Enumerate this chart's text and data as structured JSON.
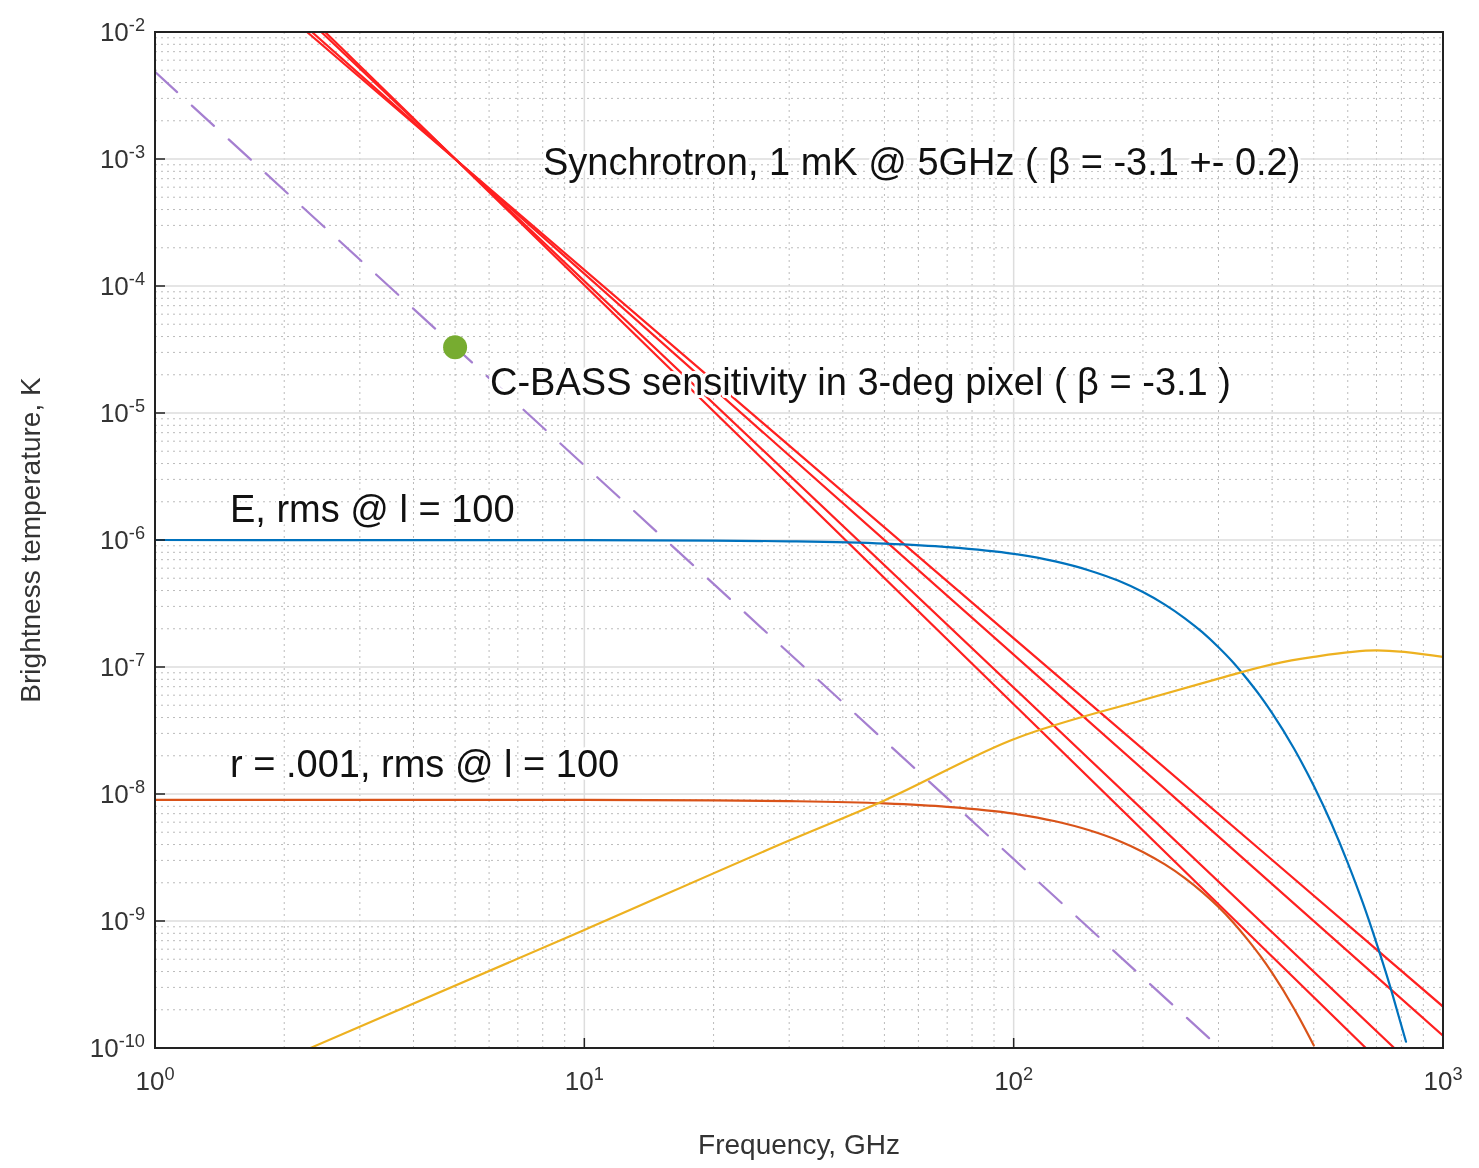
{
  "chart_data": {
    "type": "line",
    "xlabel": "Frequency, GHz",
    "ylabel": "Brightness temperature, K",
    "log": "xy",
    "grid": true,
    "xlim": [
      1,
      1000
    ],
    "ylim": [
      1e-10,
      0.01
    ],
    "xticks": [
      {
        "value": 1,
        "label": "10$^{0}$"
      },
      {
        "value": 10,
        "label": "10$^{1}$"
      },
      {
        "value": 100,
        "label": "10$^{2}$"
      },
      {
        "value": 1000,
        "label": "10$^{3}$"
      }
    ],
    "yticks": [
      {
        "value": 1e-10,
        "label": "10$^{-10}$"
      },
      {
        "value": 1e-09,
        "label": "10$^{-9}$"
      },
      {
        "value": 1e-08,
        "label": "10$^{-8}$"
      },
      {
        "value": 1e-07,
        "label": "10$^{-7}$"
      },
      {
        "value": 1e-06,
        "label": "10$^{-6}$"
      },
      {
        "value": 1e-05,
        "label": "10$^{-5}$"
      },
      {
        "value": 0.0001,
        "label": "10$^{-4}$"
      },
      {
        "value": 0.001,
        "label": "10$^{-3}$"
      },
      {
        "value": 0.01,
        "label": "10$^{-2}$"
      }
    ],
    "series": [
      {
        "color": "#ff2020",
        "line_style": "solid",
        "x": [
          2.49,
          661
        ],
        "values": [
          0.01,
          1e-10
        ]
      },
      {
        "color": "#ff2020",
        "line_style": "solid",
        "x": [
          2.44,
          770
        ],
        "values": [
          0.01,
          1e-10
        ]
      },
      {
        "color": "#ff2020",
        "line_style": "solid",
        "x": [
          2.32,
          1000
        ],
        "values": [
          0.01,
          1.25e-10
        ]
      },
      {
        "color": "#ff2020",
        "line_style": "solid",
        "x": [
          2.26,
          1000
        ],
        "values": [
          0.01,
          2.12e-10
        ]
      },
      {
        "color": "#a57fd0",
        "line_style": "dashed",
        "x": [
          1,
          302
        ],
        "values": [
          0.00486,
          1e-10
        ]
      },
      {
        "color": "#0072bd",
        "line_style": "solid",
        "x": [
          1,
          10,
          20,
          30,
          50,
          70,
          100,
          125,
          150,
          175,
          200,
          225,
          250,
          275,
          300,
          325,
          350,
          375,
          400,
          450,
          500,
          550,
          600,
          650,
          700,
          750,
          800,
          820
        ],
        "values": [
          1e-06,
          9.97e-07,
          9.9e-07,
          9.77e-07,
          9.37e-07,
          8.8e-07,
          7.78e-07,
          6.78e-07,
          5.76e-07,
          4.79e-07,
          3.89e-07,
          3.1e-07,
          2.43e-07,
          1.88e-07,
          1.43e-07,
          1.08e-07,
          8e-08,
          5.92e-08,
          4.33e-08,
          2.27e-08,
          1.16e-08,
          5.83e-09,
          2.87e-09,
          1.4e-09,
          6.7e-10,
          3.2e-10,
          1.5e-10,
          1.12e-10
        ]
      },
      {
        "color": "#d95319",
        "line_style": "solid",
        "x": [
          1,
          10,
          20,
          30,
          50,
          70,
          100,
          125,
          150,
          175,
          200,
          225,
          250,
          275,
          300,
          325,
          350,
          375,
          400,
          450,
          500
        ],
        "values": [
          9e-09,
          8.98e-09,
          8.91e-09,
          8.79e-09,
          8.43e-09,
          7.92e-09,
          7e-09,
          6.1e-09,
          5.18e-09,
          4.31e-09,
          3.5e-09,
          2.79e-09,
          2.19e-09,
          1.69e-09,
          1.29e-09,
          9.7e-10,
          7.2e-10,
          5.33e-10,
          3.9e-10,
          2.04e-10,
          1.05e-10
        ]
      },
      {
        "color": "#edb120",
        "line_style": "solid",
        "x": [
          2.3,
          10,
          30,
          50,
          100,
          200,
          300,
          400,
          500,
          700,
          1000
        ],
        "values": [
          1e-10,
          8.5e-10,
          4.3e-09,
          8.9e-09,
          2.7e-08,
          5.5e-08,
          8.1e-08,
          1.05e-07,
          1.2e-07,
          1.35e-07,
          1.2e-07
        ]
      },
      {
        "type": "scatter",
        "color": "#77ac30",
        "marker": "circle",
        "x": [
          5
        ],
        "values": [
          3.3e-05
        ]
      }
    ],
    "annotations": [
      "Synchrotron, 1 mK @ 5GHz ( β = -3.1 +- 0.2)",
      "C-BASS sensitivity in 3-deg pixel  ( β = -3.1 )",
      "E, rms @ l = 100",
      "r = .001, rms @ l = 100"
    ]
  }
}
